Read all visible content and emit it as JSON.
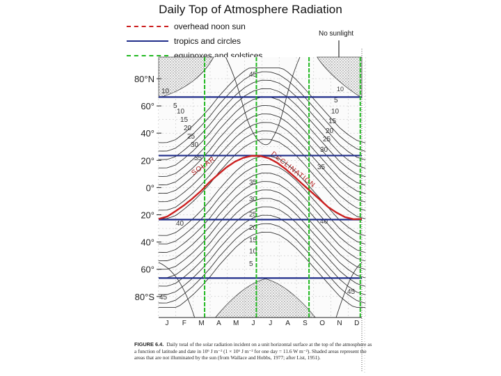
{
  "chart_data": {
    "type": "contour",
    "title": "Daily Top of Atmosphere Radiation",
    "legend": [
      {
        "label": "overhead noon sun",
        "color": "#cc1f1f",
        "style": "dashed"
      },
      {
        "label": "tropics and circles",
        "color": "#1f2d8a",
        "style": "solid"
      },
      {
        "label": "equinoxes and solstices",
        "color": "#1fb81f",
        "style": "dashed"
      }
    ],
    "annotation": "No sunlight",
    "x_tick_labels": [
      "J",
      "F",
      "M",
      "A",
      "M",
      "J",
      "J",
      "A",
      "S",
      "O",
      "N",
      "D"
    ],
    "y_tick_labels": [
      "80°N",
      "60°",
      "40°",
      "20°",
      "0°",
      "20°",
      "40°",
      "60°",
      "80°S"
    ],
    "y_values_deg": [
      80,
      60,
      40,
      20,
      0,
      -20,
      -40,
      -60,
      -80
    ],
    "ylim": [
      -90,
      90
    ],
    "tropics_and_circles_deg": [
      66.5,
      23.5,
      -23.5,
      -66.5
    ],
    "equinoxes_and_solstices_month": [
      2.68,
      5.68,
      8.73,
      11.7
    ],
    "solar_declination": {
      "month": [
        0.0,
        0.5,
        1.0,
        1.5,
        2.0,
        2.5,
        3.0,
        3.5,
        4.0,
        4.5,
        5.0,
        5.5,
        6.0,
        6.5,
        7.0,
        7.5,
        8.0,
        8.5,
        9.0,
        9.5,
        10.0,
        10.5,
        11.0,
        11.5,
        12.0
      ],
      "deg": [
        -23.0,
        -21.3,
        -17.3,
        -13.0,
        -8.0,
        -2.5,
        4.0,
        9.5,
        14.8,
        19.0,
        21.9,
        23.3,
        23.2,
        21.6,
        18.2,
        13.6,
        8.2,
        2.5,
        -3.0,
        -8.6,
        -14.2,
        -18.3,
        -21.7,
        -23.2,
        -23.0
      ]
    },
    "contour_levels_labels": {
      "north_side": [
        "10",
        "5",
        "10",
        "15",
        "20",
        "25",
        "30",
        "35",
        "5",
        "10",
        "15",
        "20",
        "25",
        "30",
        "35"
      ],
      "center_column": [
        "45",
        "35",
        "30",
        "25",
        "20",
        "15",
        "10",
        "5"
      ],
      "south_side": [
        "40",
        "40",
        "45",
        "45"
      ]
    },
    "declination_label": "SOLAR DECLINATION"
  },
  "caption": {
    "label": "FIGURE 6.4.",
    "text": "Daily total of the solar radiation incident on a unit horizontal surface at the top of the atmosphere as a function of latitude and date in 10⁶ J m⁻² (1 × 10⁶ J m⁻² for one day = 11.6 W m⁻²). Shaded areas represent the areas that are not illuminated by the sun (from Wallace and Hobbs, 1977; after List, 1951)."
  }
}
